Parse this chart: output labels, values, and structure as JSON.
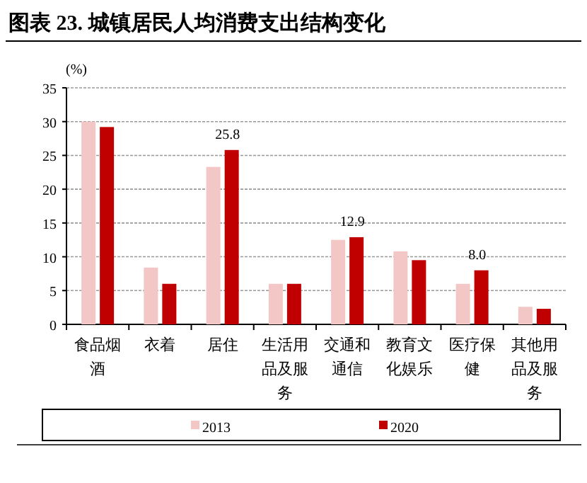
{
  "chart_data": {
    "type": "bar",
    "title": "图表 23. 城镇居民人均消费支出结构变化",
    "ylabel": "(%)",
    "categories": [
      "食品烟酒",
      "衣着",
      "居住",
      "生活用品及服务",
      "交通和通信",
      "教育文化娱乐",
      "医疗保健",
      "其他用品及服务"
    ],
    "series": [
      {
        "name": "2013",
        "color": "#f4c7c7",
        "values": [
          30.0,
          8.4,
          23.3,
          6.0,
          12.5,
          10.8,
          6.0,
          2.6
        ]
      },
      {
        "name": "2020",
        "color": "#c00000",
        "values": [
          29.2,
          6.0,
          25.8,
          6.0,
          12.9,
          9.5,
          8.0,
          2.3
        ],
        "value_labels": [
          null,
          null,
          "25.8",
          null,
          "12.9",
          null,
          "8.0",
          null
        ]
      }
    ],
    "ylim": [
      0,
      35
    ],
    "yticks": [
      0,
      5,
      10,
      15,
      20,
      25,
      30,
      35
    ],
    "grid": "y",
    "legend": "bottom"
  }
}
